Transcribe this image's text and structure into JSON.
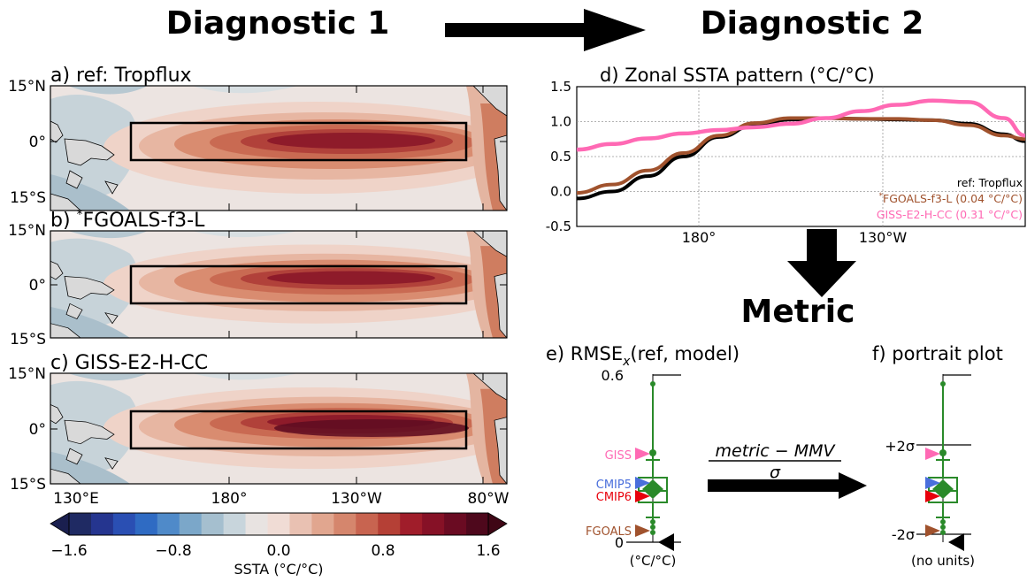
{
  "headings": {
    "diagnostic1": "Diagnostic 1",
    "diagnostic2": "Diagnostic 2",
    "metric": "Metric"
  },
  "maps": {
    "panels": [
      {
        "title": "a) ref: Tropflux"
      },
      {
        "title_prefix": "b) ",
        "title_star": "*",
        "title_main": "FGOALS-f3-L"
      },
      {
        "title": "c) GISS-E2-H-CC"
      }
    ],
    "lat_labels": [
      "15°N",
      "0°",
      "15°S"
    ],
    "lon_labels": [
      "130°E",
      "180°",
      "130°W",
      "80°W"
    ]
  },
  "colorbar": {
    "ticks": [
      "−1.6",
      "−0.8",
      "0.0",
      "0.8",
      "1.6"
    ],
    "label": "SSTA (°C/°C)",
    "colors": [
      "#1f2a63",
      "#25358f",
      "#2a4fb3",
      "#2f6bc3",
      "#4f8ac9",
      "#7ba7c9",
      "#a5bfcf",
      "#c8d5dc",
      "#e8e3e1",
      "#f0dcd5",
      "#e9c1b2",
      "#e1a68f",
      "#d5866d",
      "#c86450",
      "#b54036",
      "#a01d2a",
      "#861126",
      "#6a0b22",
      "#4e081c"
    ]
  },
  "chart_data": {
    "type": "line",
    "title": "d) Zonal SSTA pattern (°C/°C)",
    "x_ticks": [
      "180°",
      "130°W"
    ],
    "y_ticks": [
      "1.5",
      "1.0",
      "0.5",
      "0.0",
      "-0.5"
    ],
    "ylim": [
      -0.5,
      1.5
    ],
    "grid": true,
    "legend_position": "bottom-right",
    "legend": [
      {
        "name": "ref: Tropflux",
        "color": "#000000"
      },
      {
        "name_star": "*",
        "name": "FGOALS-f3-L (0.04 °C/°C)",
        "color": "#a0522d"
      },
      {
        "name": "GISS-E2-H-CC (0.31 °C/°C)",
        "color": "#ff69b4"
      }
    ],
    "x": [
      150,
      160,
      170,
      180,
      190,
      200,
      210,
      220,
      230,
      240,
      250,
      260,
      270,
      276
    ],
    "series": [
      {
        "name": "ref: Tropflux",
        "color": "#000000",
        "values": [
          -0.1,
          0.0,
          0.22,
          0.5,
          0.78,
          0.95,
          1.03,
          1.05,
          1.04,
          1.03,
          1.02,
          0.97,
          0.82,
          0.72
        ]
      },
      {
        "name": "FGOALS-f3-L (0.04 °C/°C)",
        "color": "#a0522d",
        "values": [
          -0.02,
          0.1,
          0.3,
          0.55,
          0.8,
          0.98,
          1.05,
          1.05,
          1.04,
          1.04,
          1.02,
          0.95,
          0.8,
          0.75
        ]
      },
      {
        "name": "GISS-E2-H-CC (0.31 °C/°C)",
        "color": "#ff69b4",
        "values": [
          0.6,
          0.68,
          0.76,
          0.83,
          0.88,
          0.92,
          0.97,
          1.05,
          1.15,
          1.24,
          1.3,
          1.28,
          1.05,
          0.8
        ]
      }
    ]
  },
  "panel_e": {
    "title_prefix": "e) RMSE",
    "title_sub": "x",
    "title_suffix": "(ref, model)",
    "top_value": "0.6",
    "bottom_value": "0",
    "units": "(°C/°C)",
    "markers": [
      {
        "label": "GISS",
        "color": "#ff69b4"
      },
      {
        "label": "CMIP5",
        "color": "#4a6fdc"
      },
      {
        "label": "CMIP6",
        "color": "#e8000b"
      },
      {
        "label": "FGOALS",
        "color": "#a0522d"
      }
    ]
  },
  "panel_f": {
    "title": "f) portrait plot",
    "plus_label": "+2σ",
    "minus_label": "-2σ",
    "units": "(no units)"
  },
  "formula": {
    "numerator": "metric − MMV",
    "denominator": "σ"
  },
  "colors": {
    "boxplot": "#2a8a2a",
    "arrow": "#000000"
  }
}
